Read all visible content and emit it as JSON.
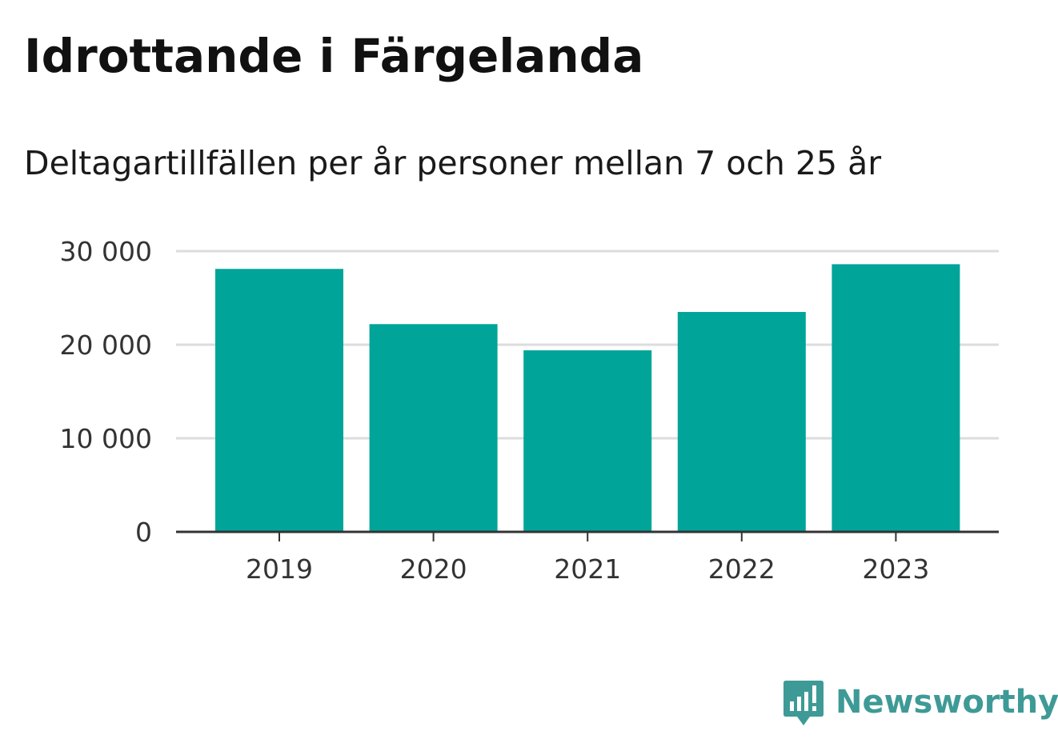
{
  "header": {
    "title": "Idrottande i Färgelanda",
    "subtitle": "Deltagartillfällen per år personer mellan 7 och 25 år"
  },
  "chart_data": {
    "type": "bar",
    "title": "Idrottande i Färgelanda",
    "subtitle": "Deltagartillfällen per år personer mellan 7 och 25 år",
    "categories": [
      "2019",
      "2020",
      "2021",
      "2022",
      "2023"
    ],
    "values": [
      28100,
      22200,
      19400,
      23500,
      28600
    ],
    "yticks": [
      0,
      10000,
      20000,
      30000
    ],
    "ytick_labels": [
      "0",
      "10 000",
      "20 000",
      "30 000"
    ],
    "ylim": [
      0,
      30000
    ],
    "xlabel": "",
    "ylabel": "",
    "grid": true,
    "bar_color": "#00a499",
    "grid_color": "#dcdcdc",
    "axis_color": "#333333"
  },
  "branding": {
    "name": "Newsworthy",
    "icon": "newsworthy-logo-icon",
    "color": "#3e9a96"
  }
}
